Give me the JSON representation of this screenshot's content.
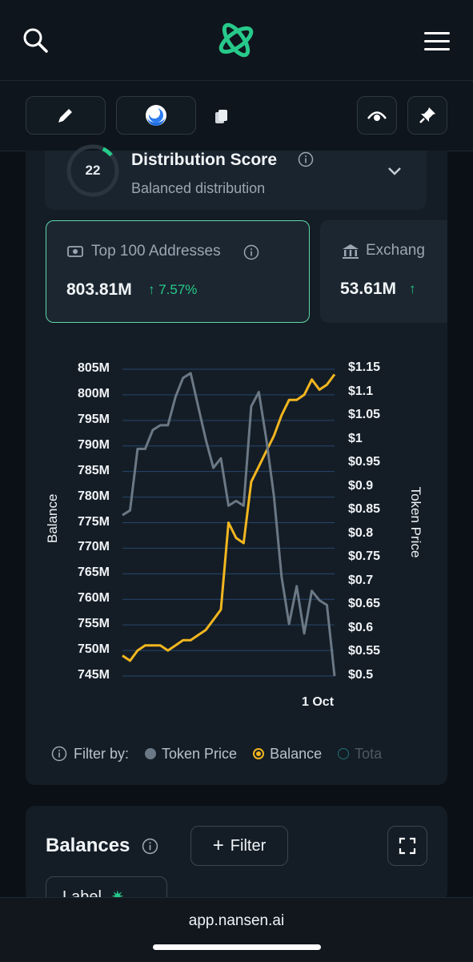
{
  "header": {
    "logo_icon": "nansen-logo-icon",
    "search_icon": "search-icon",
    "menu_icon": "hamburger-menu-icon"
  },
  "toolbar": {
    "edit_icon": "pencil-icon",
    "token_icon": "token-avatar-icon",
    "copy_icon": "copy-icon",
    "watch_icon": "eye-icon",
    "pin_icon": "pin-icon"
  },
  "score": {
    "value": "22",
    "title": "Distribution Score",
    "subtitle": "Balanced distribution",
    "progress": 0.22
  },
  "cards": [
    {
      "label": "Top 100 Addresses",
      "value": "803.81M",
      "change": "↑ 7.57%"
    },
    {
      "label": "Exchang",
      "value": "53.61M",
      "change": "↑"
    }
  ],
  "chart_data": {
    "type": "line",
    "ylabel_left": "Balance",
    "ylabel_right": "Token Price",
    "left_ticks": [
      "805M",
      "800M",
      "795M",
      "790M",
      "785M",
      "780M",
      "775M",
      "770M",
      "765M",
      "760M",
      "755M",
      "750M",
      "745M"
    ],
    "right_ticks": [
      "$1.15",
      "$1.1",
      "$1.05",
      "$1",
      "$0.95",
      "$0.9",
      "$0.85",
      "$0.8",
      "$0.75",
      "$0.7",
      "$0.65",
      "$0.6",
      "$0.55",
      "$0.5"
    ],
    "x_tick": "1 Oct",
    "ylim_left": [
      745,
      805
    ],
    "ylim_right": [
      0.5,
      1.15
    ],
    "series": [
      {
        "name": "Balance",
        "axis": "left",
        "color": "#f2b61f",
        "values": [
          749,
          748,
          750,
          751,
          751,
          751,
          750,
          751,
          752,
          752,
          753,
          754,
          756,
          758,
          775,
          772,
          771,
          783,
          786,
          789,
          792,
          796,
          799,
          799,
          800,
          803,
          801,
          802,
          804
        ]
      },
      {
        "name": "Token Price",
        "axis": "right",
        "color": "#6b7885",
        "values": [
          0.84,
          0.85,
          0.98,
          0.98,
          1.02,
          1.03,
          1.03,
          1.09,
          1.13,
          1.14,
          1.07,
          1.0,
          0.94,
          0.96,
          0.86,
          0.87,
          0.86,
          1.07,
          1.1,
          1.0,
          0.88,
          0.71,
          0.61,
          0.69,
          0.59,
          0.68,
          0.66,
          0.65,
          0.5
        ]
      }
    ]
  },
  "filter": {
    "label": "Filter by:",
    "opt1": "Token Price",
    "opt2": "Balance",
    "opt3": "Tota",
    "info_icon": "info-icon"
  },
  "balances": {
    "title": "Balances",
    "filter_label": "Filter",
    "expand_icon": "expand-icon",
    "label_chip": "Label"
  },
  "browser": {
    "url": "app.nansen.ai"
  },
  "colors": {
    "accent": "#27c98a",
    "balance": "#f2b61f",
    "price": "#6b7885",
    "grid": "#27466e"
  }
}
